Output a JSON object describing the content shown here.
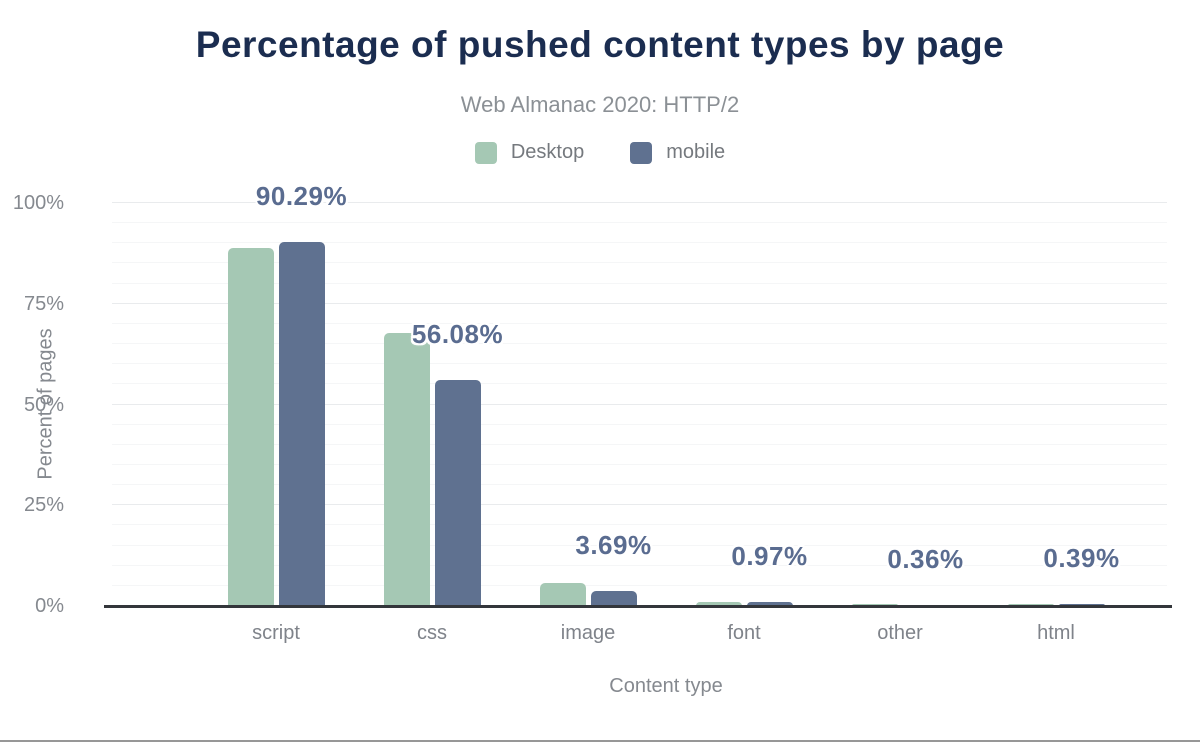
{
  "chart_data": {
    "type": "bar",
    "title": "Percentage of pushed content types by page",
    "subtitle": "Web Almanac 2020: HTTP/2",
    "xlabel": "Content type",
    "ylabel": "Percent of pages",
    "categories": [
      "script",
      "css",
      "image",
      "font",
      "other",
      "html"
    ],
    "series": [
      {
        "name": "Desktop",
        "color": "#a5c8b4",
        "values": [
          88.9,
          67.7,
          5.8,
          0.9,
          0.55,
          0.55
        ]
      },
      {
        "name": "mobile",
        "color": "#5f7190",
        "values": [
          90.29,
          56.08,
          3.69,
          0.97,
          0.36,
          0.39
        ]
      }
    ],
    "data_labels": {
      "labeled_series": "mobile",
      "values": [
        "90.29%",
        "56.08%",
        "3.69%",
        "0.97%",
        "0.36%",
        "0.39%"
      ]
    },
    "y_ticks": [
      {
        "value": 0,
        "label": "0%"
      },
      {
        "value": 25,
        "label": "25%"
      },
      {
        "value": 50,
        "label": "50%"
      },
      {
        "value": 75,
        "label": "75%"
      },
      {
        "value": 100,
        "label": "100%"
      }
    ],
    "ylim": [
      0,
      100
    ],
    "grid": {
      "minor_step": 5,
      "major_step": 25
    },
    "legend_position": "top",
    "colors": {
      "title": "#1b2d50",
      "subtitle": "#8b9095",
      "data_label": "#5a6c90",
      "axis_text": "#85898f",
      "baseline": "#33363b"
    }
  }
}
